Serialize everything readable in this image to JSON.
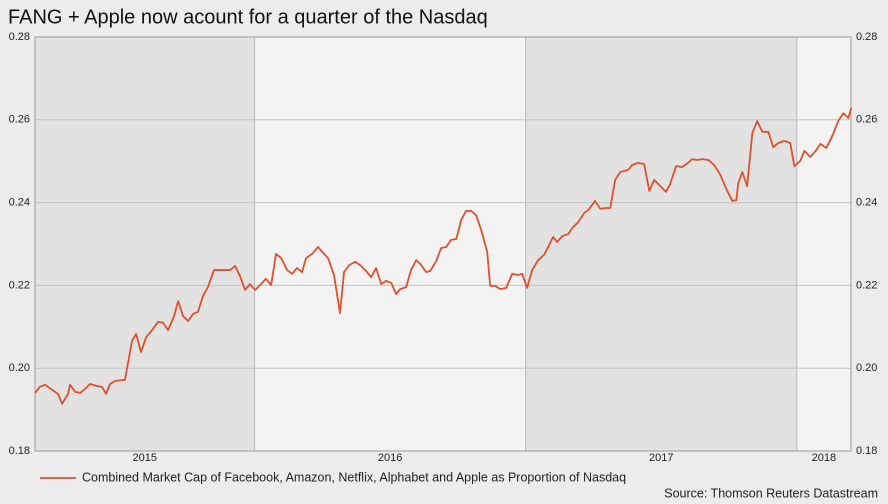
{
  "chart_data": {
    "type": "line",
    "title": "FANG + Apple now acount for a quarter of the Nasdaq",
    "source": "Source: Thomson Reuters Datastream",
    "xlim": [
      2015.19,
      2018.2
    ],
    "xticks": [
      2015,
      2016,
      2017,
      2018
    ],
    "ylim": [
      0.18,
      0.28
    ],
    "yticks": [
      0.18,
      {
        "value": 0.2,
        "label": "0.20"
      },
      0.22,
      0.24,
      0.26,
      0.28
    ],
    "grid": true,
    "right_axis_labels": true,
    "legend": "bottom-left",
    "series": [
      {
        "name": "Combined Market Cap of Facebook, Amazon, Netflix, Alphabet and Apple as Proportion of Nasdaq",
        "color": "#e2502a",
        "x": [
          2015.19,
          2015.208,
          2015.227,
          2015.253,
          2015.275,
          2015.29,
          2015.312,
          2015.319,
          2015.338,
          2015.356,
          2015.375,
          2015.393,
          2015.419,
          2015.437,
          2015.452,
          2015.467,
          2015.485,
          2015.522,
          2015.548,
          2015.563,
          2015.581,
          2015.6,
          2015.622,
          2015.644,
          2015.662,
          2015.681,
          2015.703,
          2015.718,
          2015.736,
          2015.755,
          2015.773,
          2015.791,
          2015.81,
          2015.828,
          2015.85,
          2015.873,
          2015.91,
          2015.928,
          2015.946,
          2015.965,
          2015.983,
          2016.002,
          2016.028,
          2016.042,
          2016.061,
          2016.079,
          2016.098,
          2016.12,
          2016.138,
          2016.157,
          2016.175,
          2016.19,
          2016.212,
          2016.234,
          2016.253,
          2016.271,
          2016.293,
          2016.315,
          2016.33,
          2016.349,
          2016.371,
          2016.389,
          2016.411,
          2016.43,
          2016.448,
          2016.467,
          2016.485,
          2016.504,
          2016.522,
          2016.537,
          2016.559,
          2016.577,
          2016.596,
          2016.611,
          2016.633,
          2016.648,
          2016.67,
          2016.688,
          2016.707,
          2016.725,
          2016.744,
          2016.762,
          2016.78,
          2016.799,
          2016.817,
          2016.836,
          2016.858,
          2016.869,
          2016.887,
          2016.906,
          2016.928,
          2016.95,
          2016.972,
          2016.987,
          2017.005,
          2017.024,
          2017.046,
          2017.068,
          2017.083,
          2017.101,
          2017.116,
          2017.135,
          2017.157,
          2017.172,
          2017.194,
          2017.216,
          2017.231,
          2017.256,
          2017.275,
          2017.297,
          2017.312,
          2017.33,
          2017.349,
          2017.378,
          2017.393,
          2017.415,
          2017.437,
          2017.456,
          2017.474,
          2017.496,
          2017.518,
          2017.533,
          2017.555,
          2017.577,
          2017.599,
          2017.614,
          2017.633,
          2017.651,
          2017.673,
          2017.695,
          2017.718,
          2017.74,
          2017.762,
          2017.777,
          2017.784,
          2017.799,
          2017.817,
          2017.836,
          2017.854,
          2017.873,
          2017.895,
          2017.913,
          2017.932,
          2017.954,
          2017.976,
          2017.991,
          2018.013,
          2018.028,
          2018.05,
          2018.072,
          2018.087,
          2018.109,
          2018.131,
          2018.153,
          2018.172,
          2018.19,
          2018.201
        ],
        "values": [
          0.194,
          0.1955,
          0.196,
          0.1948,
          0.1938,
          0.1914,
          0.1938,
          0.196,
          0.1943,
          0.194,
          0.195,
          0.1962,
          0.1957,
          0.1955,
          0.1938,
          0.1962,
          0.1969,
          0.1972,
          0.2066,
          0.2083,
          0.2039,
          0.2075,
          0.2092,
          0.2112,
          0.211,
          0.2092,
          0.2126,
          0.2162,
          0.2126,
          0.2114,
          0.2131,
          0.2136,
          0.2175,
          0.2196,
          0.2237,
          0.2237,
          0.2237,
          0.2247,
          0.2223,
          0.2189,
          0.2203,
          0.2189,
          0.2206,
          0.2216,
          0.2201,
          0.2276,
          0.2266,
          0.2237,
          0.2228,
          0.2242,
          0.2232,
          0.2266,
          0.2276,
          0.2293,
          0.2278,
          0.2266,
          0.2225,
          0.2133,
          0.2232,
          0.2249,
          0.2257,
          0.2249,
          0.2235,
          0.222,
          0.2242,
          0.2203,
          0.2211,
          0.2206,
          0.2179,
          0.2191,
          0.2196,
          0.2237,
          0.2261,
          0.2252,
          0.2232,
          0.2235,
          0.2259,
          0.229,
          0.2293,
          0.231,
          0.2312,
          0.2358,
          0.238,
          0.238,
          0.237,
          0.2334,
          0.2281,
          0.2199,
          0.2199,
          0.2191,
          0.2194,
          0.2228,
          0.2225,
          0.2228,
          0.2194,
          0.2237,
          0.2261,
          0.2274,
          0.2293,
          0.2317,
          0.2305,
          0.2319,
          0.2324,
          0.2339,
          0.2353,
          0.2375,
          0.2382,
          0.2404,
          0.2385,
          0.2387,
          0.2387,
          0.2455,
          0.2474,
          0.2479,
          0.2491,
          0.2496,
          0.2493,
          0.2428,
          0.2455,
          0.244,
          0.2426,
          0.2445,
          0.2488,
          0.2486,
          0.2496,
          0.2505,
          0.2503,
          0.2505,
          0.2503,
          0.2491,
          0.2467,
          0.2433,
          0.2404,
          0.2406,
          0.2447,
          0.2474,
          0.244,
          0.2568,
          0.2597,
          0.2571,
          0.2571,
          0.2534,
          0.2544,
          0.2549,
          0.2544,
          0.2488,
          0.2501,
          0.2525,
          0.251,
          0.2527,
          0.2542,
          0.2532,
          0.2561,
          0.2597,
          0.2616,
          0.2604,
          0.2629
        ]
      }
    ]
  }
}
